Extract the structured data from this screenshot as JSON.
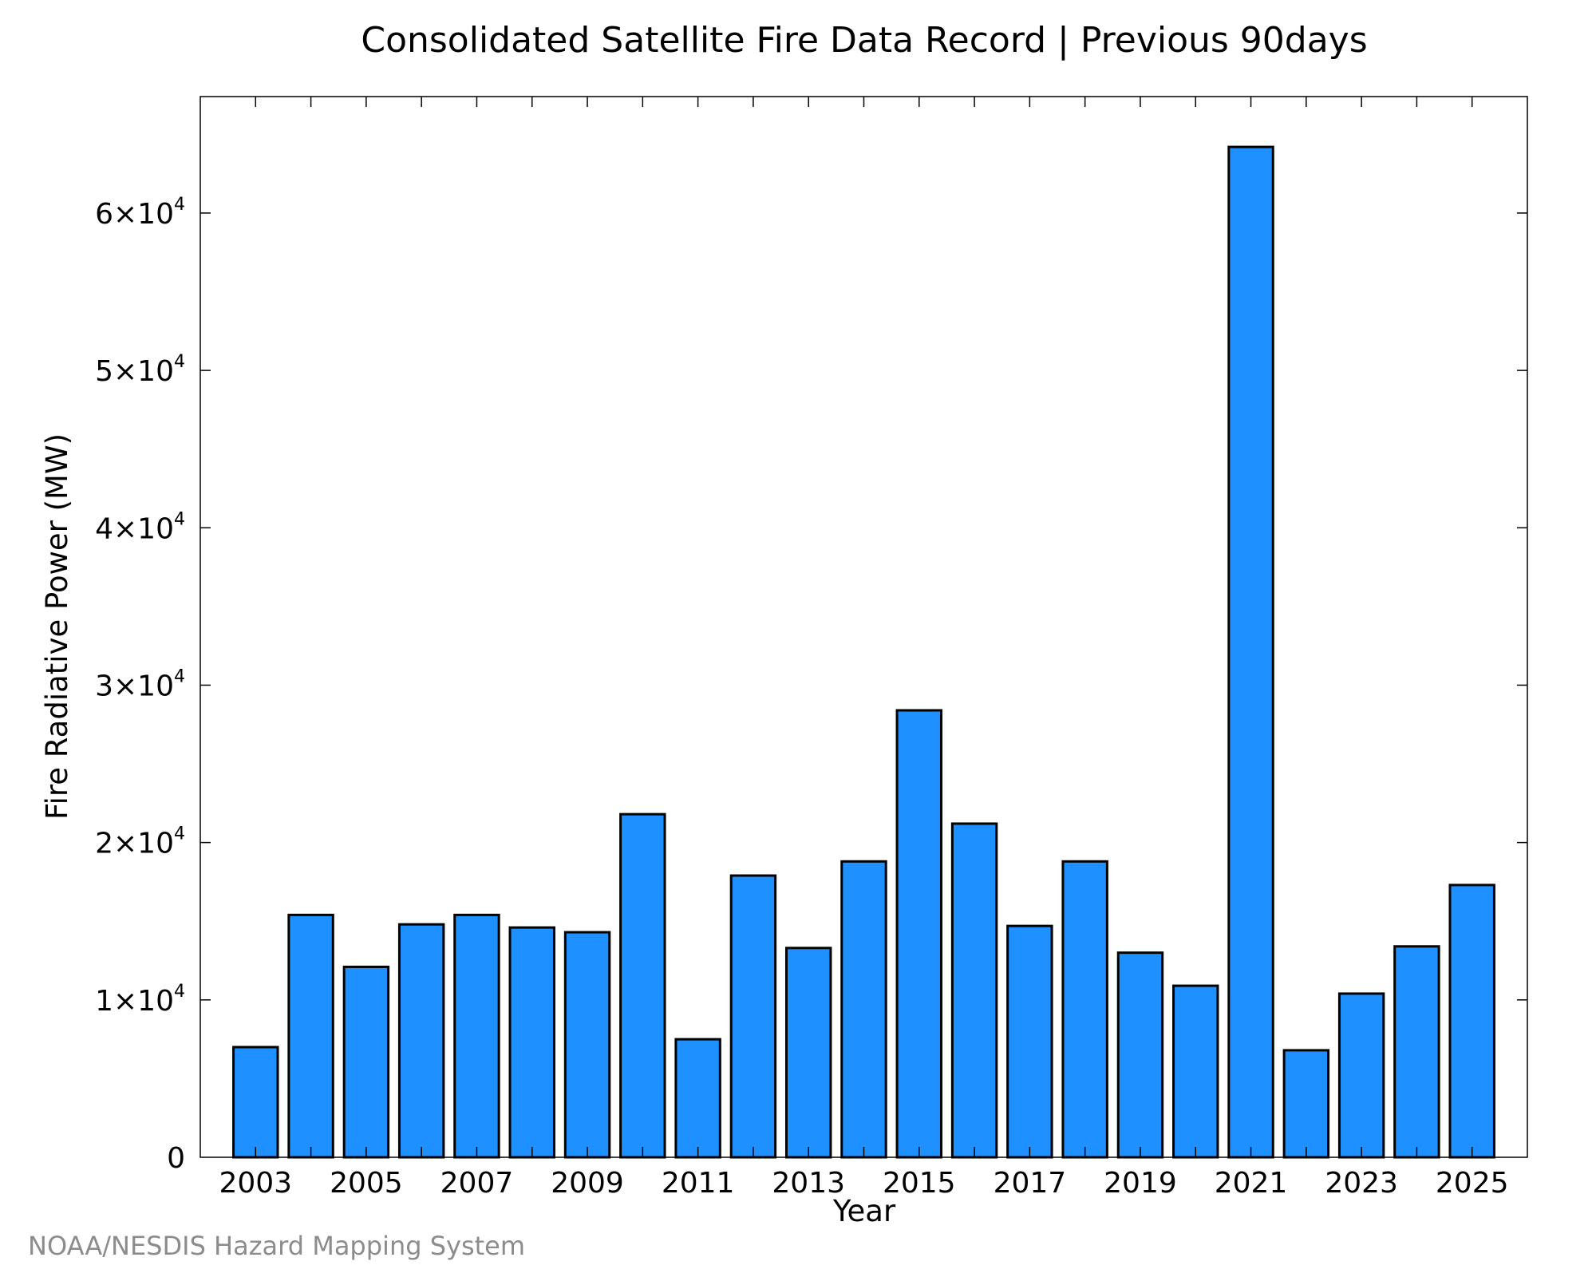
{
  "chart_data": {
    "type": "bar",
    "title": "Consolidated Satellite Fire Data Record | Previous 90days",
    "xlabel": "Year",
    "ylabel": "Fire Radiative Power (MW)",
    "categories": [
      "2003",
      "2004",
      "2005",
      "2006",
      "2007",
      "2008",
      "2009",
      "2010",
      "2011",
      "2012",
      "2013",
      "2014",
      "2015",
      "2016",
      "2017",
      "2018",
      "2019",
      "2020",
      "2021",
      "2022",
      "2023",
      "2024",
      "2025"
    ],
    "values": [
      7000,
      15400,
      12100,
      14800,
      15400,
      14600,
      14300,
      21800,
      7500,
      17900,
      13300,
      18800,
      28400,
      21200,
      14700,
      18800,
      13000,
      10900,
      64200,
      6800,
      10400,
      13400,
      17300
    ],
    "x_tick_labels": [
      "2003",
      "2005",
      "2007",
      "2009",
      "2011",
      "2013",
      "2015",
      "2017",
      "2019",
      "2021",
      "2023",
      "2025"
    ],
    "y_ticks": [
      {
        "value": 0,
        "base": "0",
        "exp": ""
      },
      {
        "value": 10000,
        "base": "1×10",
        "exp": "4"
      },
      {
        "value": 20000,
        "base": "2×10",
        "exp": "4"
      },
      {
        "value": 30000,
        "base": "3×10",
        "exp": "4"
      },
      {
        "value": 40000,
        "base": "4×10",
        "exp": "4"
      },
      {
        "value": 50000,
        "base": "5×10",
        "exp": "4"
      },
      {
        "value": 60000,
        "base": "6×10",
        "exp": "4"
      }
    ],
    "ylim": [
      0,
      67400
    ],
    "xlim": [
      2002.0,
      2026.0
    ],
    "bar_color": "#1e90ff",
    "grid": false,
    "legend": "none"
  },
  "footer": {
    "credit": "NOAA/NESDIS Hazard Mapping System"
  }
}
